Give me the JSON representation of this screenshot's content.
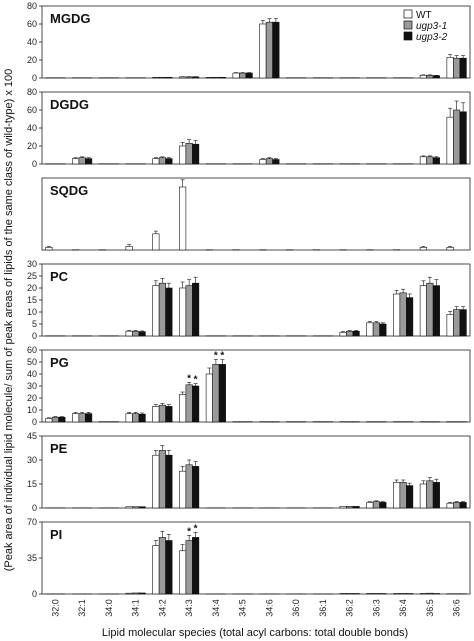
{
  "chart_data": {
    "type": "bar",
    "categories": [
      "32:0",
      "32:1",
      "34:0",
      "34:1",
      "34:2",
      "34:3",
      "34:4",
      "34:5",
      "34:6",
      "36:0",
      "36:1",
      "36:2",
      "36:3",
      "36:4",
      "36:5",
      "36:6"
    ],
    "xlabel": "Lipid molecular species (total acyl carbons: total double bonds)",
    "ylabel": "(Peak area of individual lipid molecule/ sum of peak areas of lipids of the same class of wild-type) x 100",
    "legend": {
      "placement": "top-right",
      "entries": [
        {
          "name": "WT",
          "color": "#ffffff"
        },
        {
          "name": "ugp3-1",
          "color": "#9a9a9a"
        },
        {
          "name": "ugp3-2",
          "color": "#111111"
        }
      ]
    },
    "panels": [
      {
        "name": "MGDG",
        "ylim": [
          0,
          80
        ],
        "yticks": [
          0,
          20,
          40,
          60,
          80
        ],
        "series": [
          {
            "name": "WT",
            "values": [
              0.3,
              0.3,
              0.3,
              0.3,
              0.8,
              1.2,
              0.8,
              5.5,
              60,
              0.3,
              0.3,
              0.3,
              0.3,
              0.3,
              3,
              23
            ],
            "errors": [
              0.1,
              0.1,
              0.1,
              0.1,
              0.2,
              0.3,
              0.2,
              0.5,
              4,
              0.1,
              0.1,
              0.1,
              0.1,
              0.1,
              0.5,
              3
            ]
          },
          {
            "name": "ugp3-1",
            "values": [
              0.3,
              0.3,
              0.3,
              0.3,
              0.8,
              1.2,
              0.8,
              5.5,
              62,
              0.3,
              0.3,
              0.3,
              0.3,
              0.3,
              3,
              22
            ],
            "errors": [
              0.1,
              0.1,
              0.1,
              0.1,
              0.2,
              0.3,
              0.2,
              0.5,
              4,
              0.1,
              0.1,
              0.1,
              0.1,
              0.1,
              0.5,
              3
            ]
          },
          {
            "name": "ugp3-2",
            "values": [
              0.3,
              0.3,
              0.3,
              0.3,
              0.8,
              1.2,
              0.8,
              5.5,
              62,
              0.3,
              0.3,
              0.3,
              0.3,
              0.3,
              2.5,
              22
            ],
            "errors": [
              0.1,
              0.1,
              0.1,
              0.1,
              0.2,
              0.3,
              0.2,
              0.5,
              4,
              0.1,
              0.1,
              0.1,
              0.1,
              0.1,
              0.5,
              3
            ]
          }
        ],
        "significance": []
      },
      {
        "name": "DGDG",
        "ylim": [
          0,
          80
        ],
        "yticks": [
          0,
          20,
          40,
          60,
          80
        ],
        "series": [
          {
            "name": "WT",
            "values": [
              0.3,
              6,
              0.3,
              0.3,
              6,
              20,
              0.3,
              0.3,
              5,
              0.3,
              0.3,
              0.3,
              0.3,
              0.3,
              8,
              52
            ],
            "errors": [
              0.1,
              1,
              0.1,
              0.1,
              1,
              4,
              0.1,
              0.1,
              1,
              0.1,
              0.1,
              0.1,
              0.1,
              0.1,
              1,
              10
            ]
          },
          {
            "name": "ugp3-1",
            "values": [
              0.3,
              7,
              0.3,
              0.3,
              7,
              23,
              0.3,
              0.3,
              6,
              0.3,
              0.3,
              0.3,
              0.3,
              0.3,
              8,
              60
            ],
            "errors": [
              0.1,
              1,
              0.1,
              0.1,
              1,
              4,
              0.1,
              0.1,
              1,
              0.1,
              0.1,
              0.1,
              0.1,
              0.1,
              1,
              10
            ]
          },
          {
            "name": "ugp3-2",
            "values": [
              0.3,
              6,
              0.3,
              0.3,
              6,
              22,
              0.3,
              0.3,
              5,
              0.3,
              0.3,
              0.3,
              0.3,
              0.3,
              7,
              58
            ],
            "errors": [
              0.1,
              1,
              0.1,
              0.1,
              1,
              4,
              0.1,
              0.1,
              1,
              0.1,
              0.1,
              0.1,
              0.1,
              0.1,
              1,
              10
            ]
          }
        ],
        "significance": []
      },
      {
        "name": "SQDG",
        "ylim": [
          0,
          80
        ],
        "yticks": [],
        "series": [
          {
            "name": "WT",
            "values": [
              3,
              0.3,
              0.3,
              4,
              18,
              70,
              0.3,
              0.3,
              0.3,
              0.3,
              0.3,
              0.3,
              0.3,
              0.3,
              3,
              3
            ],
            "errors": [
              1,
              0.1,
              0.1,
              2,
              3,
              8,
              0.1,
              0.1,
              0.1,
              0.1,
              0.1,
              0.1,
              0.1,
              0.1,
              1,
              1
            ]
          },
          {
            "name": "ugp3-1",
            "values": [
              0,
              0,
              0,
              0,
              0,
              0,
              0,
              0,
              0,
              0,
              0,
              0,
              0,
              0,
              0,
              0
            ],
            "errors": [
              0,
              0,
              0,
              0,
              0,
              0,
              0,
              0,
              0,
              0,
              0,
              0,
              0,
              0,
              0,
              0
            ]
          },
          {
            "name": "ugp3-2",
            "values": [
              0,
              0,
              0,
              0,
              0,
              0,
              0,
              0,
              0,
              0,
              0,
              0,
              0,
              0,
              0,
              0
            ],
            "errors": [
              0,
              0,
              0,
              0,
              0,
              0,
              0,
              0,
              0,
              0,
              0,
              0,
              0,
              0,
              0,
              0
            ]
          }
        ],
        "significance": []
      },
      {
        "name": "PC",
        "ylim": [
          0,
          30
        ],
        "yticks": [
          0,
          5,
          10,
          15,
          20,
          25,
          30
        ],
        "series": [
          {
            "name": "WT",
            "values": [
              0.1,
              0.1,
              0.1,
              2,
              21,
              20,
              0.1,
              0.1,
              0.1,
              0.1,
              0.1,
              1.5,
              5.5,
              17.5,
              21,
              9
            ],
            "errors": [
              0.05,
              0.05,
              0.05,
              0.3,
              2,
              2.5,
              0.05,
              0.05,
              0.05,
              0.05,
              0.05,
              0.3,
              0.5,
              1.5,
              2,
              1.2
            ]
          },
          {
            "name": "ugp3-1",
            "values": [
              0.1,
              0.1,
              0.1,
              2,
              22,
              21,
              0.1,
              0.1,
              0.1,
              0.1,
              0.1,
              2,
              5.5,
              18,
              22,
              11
            ],
            "errors": [
              0.05,
              0.05,
              0.05,
              0.3,
              2,
              2.5,
              0.05,
              0.05,
              0.05,
              0.05,
              0.05,
              0.3,
              0.5,
              1.5,
              2.5,
              1.2
            ]
          },
          {
            "name": "ugp3-2",
            "values": [
              0.1,
              0.1,
              0.1,
              1.8,
              20,
              22,
              0.1,
              0.1,
              0.1,
              0.1,
              0.1,
              2,
              5,
              16,
              21,
              11
            ],
            "errors": [
              0.05,
              0.05,
              0.05,
              0.3,
              2,
              2.5,
              0.05,
              0.05,
              0.05,
              0.05,
              0.05,
              0.3,
              0.5,
              1.5,
              2.5,
              1.2
            ]
          }
        ],
        "significance": []
      },
      {
        "name": "PG",
        "ylim": [
          0,
          60
        ],
        "yticks": [
          0,
          10,
          20,
          30,
          40,
          50,
          60
        ],
        "series": [
          {
            "name": "WT",
            "values": [
              3,
              7,
              0.3,
              7,
              13,
              23,
              40,
              0.3,
              0.3,
              0.3,
              0.3,
              0.3,
              0.3,
              0.3,
              0.3,
              0.3
            ],
            "errors": [
              0.5,
              1,
              0.1,
              1,
              1.5,
              2,
              5,
              0.1,
              0.1,
              0.1,
              0.1,
              0.1,
              0.1,
              0.1,
              0.1,
              0.1
            ]
          },
          {
            "name": "ugp3-1",
            "values": [
              4,
              7,
              0.3,
              7,
              14,
              31,
              48,
              0.3,
              0.3,
              0.3,
              0.3,
              0.3,
              0.3,
              0.3,
              0.3,
              0.3
            ],
            "errors": [
              0.5,
              1,
              0.1,
              1,
              1.5,
              2,
              4,
              0.1,
              0.1,
              0.1,
              0.1,
              0.1,
              0.1,
              0.1,
              0.1,
              0.1
            ]
          },
          {
            "name": "ugp3-2",
            "values": [
              4,
              7,
              0.3,
              6.5,
              13,
              30,
              48,
              0.3,
              0.3,
              0.3,
              0.3,
              0.3,
              0.3,
              0.3,
              0.3,
              0.3
            ],
            "errors": [
              0.5,
              1,
              0.1,
              1,
              1.5,
              2,
              4,
              0.1,
              0.1,
              0.1,
              0.1,
              0.1,
              0.1,
              0.1,
              0.1,
              0.1
            ]
          }
        ],
        "significance": [
          {
            "category": "34:3",
            "series": "ugp3-1",
            "mark": "*"
          },
          {
            "category": "34:3",
            "series": "ugp3-2",
            "mark": "*"
          },
          {
            "category": "34:4",
            "series": "ugp3-1",
            "mark": "*"
          },
          {
            "category": "34:4",
            "series": "ugp3-2",
            "mark": "*"
          }
        ]
      },
      {
        "name": "PE",
        "ylim": [
          0,
          45
        ],
        "yticks": [
          0,
          15,
          30,
          45
        ],
        "series": [
          {
            "name": "WT",
            "values": [
              0.1,
              0.1,
              0.1,
              0.8,
              33,
              23,
              0.1,
              0.1,
              0.1,
              0.1,
              0.1,
              1,
              3.5,
              16,
              15,
              3
            ],
            "errors": [
              0.05,
              0.05,
              0.05,
              0.3,
              3,
              3,
              0.05,
              0.05,
              0.05,
              0.05,
              0.05,
              0.3,
              0.5,
              1.5,
              2,
              0.5
            ]
          },
          {
            "name": "ugp3-1",
            "values": [
              0.1,
              0.1,
              0.1,
              0.8,
              36,
              27,
              0.1,
              0.1,
              0.1,
              0.1,
              0.1,
              1,
              4,
              16,
              17,
              3.5
            ],
            "errors": [
              0.05,
              0.05,
              0.05,
              0.3,
              3,
              3,
              0.05,
              0.05,
              0.05,
              0.05,
              0.05,
              0.3,
              0.5,
              1.5,
              2,
              0.5
            ]
          },
          {
            "name": "ugp3-2",
            "values": [
              0.1,
              0.1,
              0.1,
              0.8,
              33,
              26,
              0.1,
              0.1,
              0.1,
              0.1,
              0.1,
              1,
              3.5,
              14,
              16,
              3.5
            ],
            "errors": [
              0.05,
              0.05,
              0.05,
              0.3,
              3,
              3,
              0.05,
              0.05,
              0.05,
              0.05,
              0.05,
              0.3,
              0.5,
              1.5,
              2,
              0.5
            ]
          }
        ],
        "significance": []
      },
      {
        "name": "PI",
        "ylim": [
          0,
          70
        ],
        "yticks": [
          0,
          35,
          70
        ],
        "series": [
          {
            "name": "WT",
            "values": [
              0.1,
              0.1,
              0.1,
              0.8,
              47,
              42,
              0.1,
              0.1,
              0.1,
              0.1,
              0.1,
              0.5,
              0.5,
              0.5,
              0.5,
              0.3
            ],
            "errors": [
              0.05,
              0.05,
              0.05,
              0.3,
              5,
              6,
              0.05,
              0.05,
              0.05,
              0.05,
              0.05,
              0.2,
              0.2,
              0.2,
              0.2,
              0.1
            ]
          },
          {
            "name": "ugp3-1",
            "values": [
              0.1,
              0.1,
              0.1,
              1,
              55,
              52,
              0.1,
              0.1,
              0.1,
              0.1,
              0.1,
              0.5,
              0.5,
              0.5,
              0.8,
              0.3
            ],
            "errors": [
              0.05,
              0.05,
              0.05,
              0.3,
              6,
              5,
              0.05,
              0.05,
              0.05,
              0.05,
              0.05,
              0.2,
              0.2,
              0.2,
              0.2,
              0.1
            ]
          },
          {
            "name": "ugp3-2",
            "values": [
              0.1,
              0.1,
              0.1,
              1,
              52,
              55,
              0.1,
              0.1,
              0.1,
              0.1,
              0.1,
              0.5,
              0.5,
              0.5,
              0.5,
              0.3
            ],
            "errors": [
              0.05,
              0.05,
              0.05,
              0.3,
              6,
              5,
              0.05,
              0.05,
              0.05,
              0.05,
              0.05,
              0.2,
              0.2,
              0.2,
              0.2,
              0.1
            ]
          }
        ],
        "significance": [
          {
            "category": "34:3",
            "series": "ugp3-1",
            "mark": "*"
          },
          {
            "category": "34:3",
            "series": "ugp3-2",
            "mark": "*"
          }
        ]
      }
    ]
  }
}
